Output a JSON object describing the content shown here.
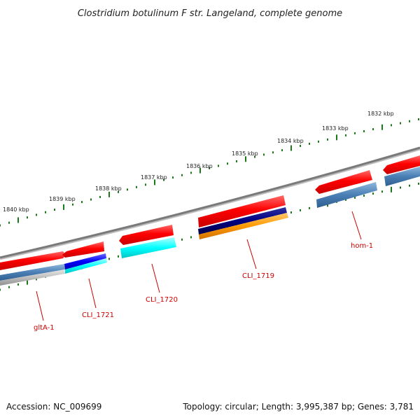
{
  "title": "Clostridium botulinum F str. Langeland, complete genome",
  "footer": {
    "accession": "Accession: NC_009699",
    "topology": "Topology: circular; Length: 3,995,387 bp; Genes: 3,781"
  },
  "scale_labels": [
    "1840 kbp",
    "1839 kbp",
    "1838 kbp",
    "1837 kbp",
    "1836 kbp",
    "1835 kbp",
    "1834 kbp",
    "1833 kbp",
    "1832 kbp"
  ],
  "gene_labels": [
    "gltA-1",
    "CLI_1721",
    "CLI_1720",
    "CLI_1719",
    "hom-1"
  ],
  "colors": {
    "backbone": "#808080",
    "forward_gene": "#ff0000",
    "cds_steelblue": "#4a7fb5",
    "cds_blue": "#0000ff",
    "cds_cyan": "#00ffff",
    "cds_navy": "#000080",
    "cds_orange": "#ff9900",
    "cds_gray": "#b0b0b0",
    "tick": "#1a7a1a",
    "label": "#cc0000"
  }
}
